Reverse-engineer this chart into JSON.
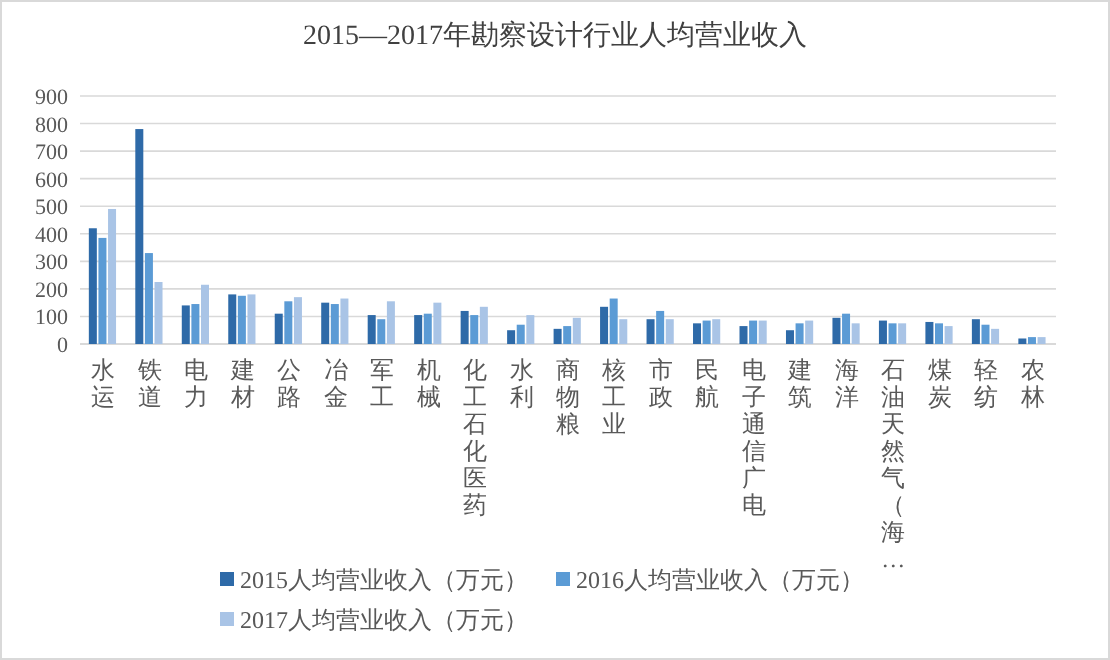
{
  "chart_data": {
    "type": "bar",
    "title": "2015—2017年勘察设计行业人均营业收入",
    "categories": [
      "水运",
      "铁道",
      "电力",
      "建材",
      "公路",
      "冶金",
      "军工",
      "机械",
      "化工石化医药",
      "水利",
      "商物粮",
      "核工业",
      "市政",
      "民航",
      "电子通信广电",
      "建筑",
      "海洋",
      "石油天然气（海…",
      "煤炭",
      "轻纺",
      "农林"
    ],
    "series": [
      {
        "name": "2015人均营业收入（万元）",
        "color": "#2e6aa8",
        "values": [
          420,
          780,
          140,
          180,
          110,
          150,
          105,
          105,
          120,
          50,
          55,
          135,
          90,
          75,
          65,
          50,
          95,
          85,
          80,
          90,
          20
        ]
      },
      {
        "name": "2016人均营业收入（万元）",
        "color": "#5b9bd5",
        "values": [
          385,
          330,
          145,
          175,
          155,
          145,
          90,
          110,
          105,
          70,
          65,
          165,
          120,
          85,
          85,
          75,
          110,
          75,
          75,
          70,
          25
        ]
      },
      {
        "name": "2017人均营业收入（万元）",
        "color": "#a9c4e6",
        "values": [
          490,
          225,
          215,
          180,
          170,
          165,
          155,
          150,
          135,
          105,
          95,
          90,
          90,
          90,
          85,
          85,
          75,
          75,
          65,
          55,
          25
        ]
      }
    ],
    "ylim": [
      0,
      900
    ],
    "yticks": [
      0,
      100,
      200,
      300,
      400,
      500,
      600,
      700,
      800,
      900
    ],
    "grid": "y",
    "legend": "bottom"
  }
}
